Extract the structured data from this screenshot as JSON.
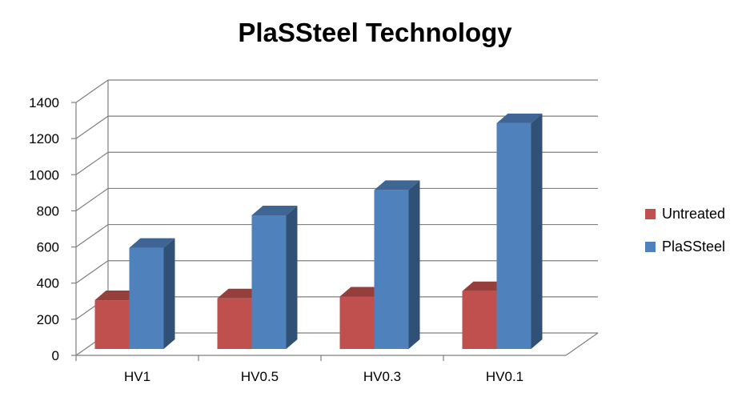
{
  "chart_data": {
    "type": "bar",
    "title": "PlaSSteel Technology",
    "xlabel": "",
    "ylabel": "",
    "categories": [
      "HV1",
      "HV0.5",
      "HV0.3",
      "HV0.1"
    ],
    "series": [
      {
        "name": "Untreated",
        "values": [
          270,
          280,
          290,
          320
        ],
        "color": "#c0504d"
      },
      {
        "name": "PlaSSteel",
        "values": [
          560,
          740,
          880,
          1250
        ],
        "color": "#4f81bd"
      }
    ],
    "ylim": [
      0,
      1400
    ],
    "yticks": [
      "0",
      "200",
      "400",
      "600",
      "800",
      "1000",
      "1200",
      "1400"
    ],
    "grid": true,
    "legend": "right",
    "3d": true
  }
}
